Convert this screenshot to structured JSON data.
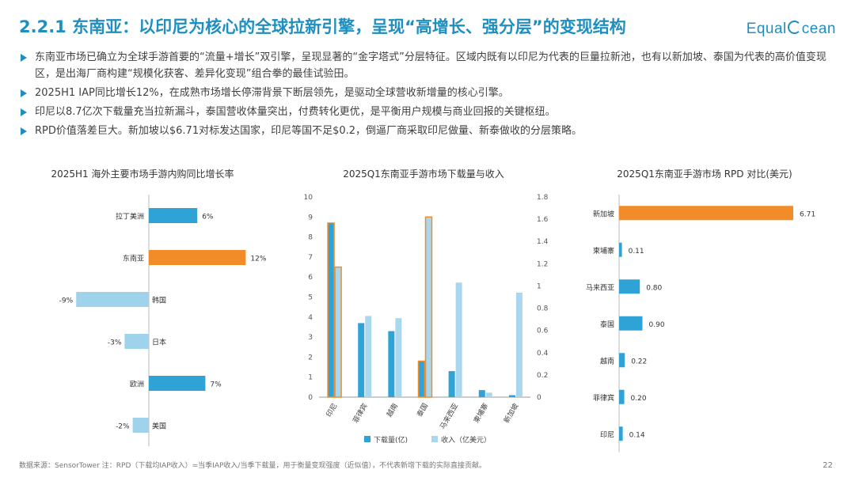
{
  "header": {
    "title": "2.2.1 东南亚：以印尼为核心的全球拉新引擎，呈现“高增长、强分层”的变现结构",
    "logo_left": "Equal",
    "logo_right": "cean"
  },
  "bullets": [
    "东南亚市场已确立为全球手游首要的“流量+增长”双引擎，呈现显著的“金字塔式”分层特征。区域内既有以印尼为代表的巨量拉新池，也有以新加坡、泰国为代表的高价值变现区，是出海厂商构建“规模化获客、差异化变现”组合拳的最佳试验田。",
    "2025H1 IAP同比增长12%，在成熟市场增长停滞背景下断层领先，是驱动全球营收新增量的核心引擎。",
    "印尼以8.7亿次下载量充当拉新漏斗，泰国营收体量突出，付费转化更优，是平衡用户规模与商业回报的关键枢纽。",
    "RPD价值落差巨大。新加坡以$6.71对标发达国家，印尼等国不足$0.2，倒逼厂商采取印尼做量、新泰做收的分层策略。"
  ],
  "chart_data": [
    {
      "type": "bar",
      "orientation": "horizontal",
      "title": "2025H1 海外主要市场手游内购同比增长率",
      "categories": [
        "拉丁美洲",
        "东南亚",
        "韩国",
        "日本",
        "欧洲",
        "美国"
      ],
      "values": [
        6,
        12,
        -9,
        -3,
        7,
        -2
      ],
      "value_labels": [
        "6%",
        "12%",
        "-9%",
        "-3%",
        "7%",
        "-2%"
      ],
      "highlight": "东南亚",
      "colors": {
        "default": "#2fa3d6",
        "highlight": "#f28c28",
        "negative": "#9fd3ec"
      }
    },
    {
      "type": "bar",
      "title": "2025Q1东南亚手游市场下载量与收入",
      "categories": [
        "印尼",
        "菲律宾",
        "越南",
        "泰国",
        "马来西亚",
        "柬埔寨",
        "新加坡"
      ],
      "y_ticks": [
        "0",
        "1",
        "2",
        "3",
        "4",
        "5",
        "6",
        "7",
        "8",
        "9",
        "10"
      ],
      "y2_ticks": [
        "0",
        "0.2",
        "0.4",
        "0.6",
        "0.8",
        "1",
        "1.2",
        "1.4",
        "1.6",
        "1.8"
      ],
      "ylim": [
        0,
        10
      ],
      "y2lim": [
        0,
        1.8
      ],
      "highlight": [
        "印尼",
        "泰国"
      ],
      "series": [
        {
          "name": "下载量(亿)",
          "axis": "left",
          "color": "#2fa3d6",
          "values": [
            8.7,
            3.7,
            3.3,
            1.8,
            1.3,
            0.35,
            0.1
          ]
        },
        {
          "name": "收入（亿美元）",
          "axis": "right",
          "color": "#a9d7ee",
          "values": [
            1.17,
            0.73,
            0.71,
            1.62,
            1.03,
            0.04,
            0.94
          ]
        }
      ],
      "colors": {
        "highlight_border": "#f28c28"
      }
    },
    {
      "type": "bar",
      "orientation": "horizontal",
      "title": "2025Q1东南亚手游市场 RPD 对比(美元)",
      "categories": [
        "新加坡",
        "柬埔寨",
        "马来西亚",
        "泰国",
        "越南",
        "菲律宾",
        "印尼"
      ],
      "values": [
        6.71,
        0.11,
        0.8,
        0.9,
        0.22,
        0.2,
        0.14
      ],
      "value_labels": [
        "6.71",
        "0.11",
        "0.80",
        "0.90",
        "0.22",
        "0.20",
        "0.14"
      ],
      "highlight": "新加坡",
      "colors": {
        "default": "#2fa3d6",
        "highlight": "#f28c28"
      }
    }
  ],
  "footer": {
    "source": "数据来源：SensorTower 注：RPD（下载均IAP收入）=当季IAP收入/当季下载量，用于衡量变现强度（近似值），不代表新增下载的实际直接贡献。",
    "page": "22"
  }
}
